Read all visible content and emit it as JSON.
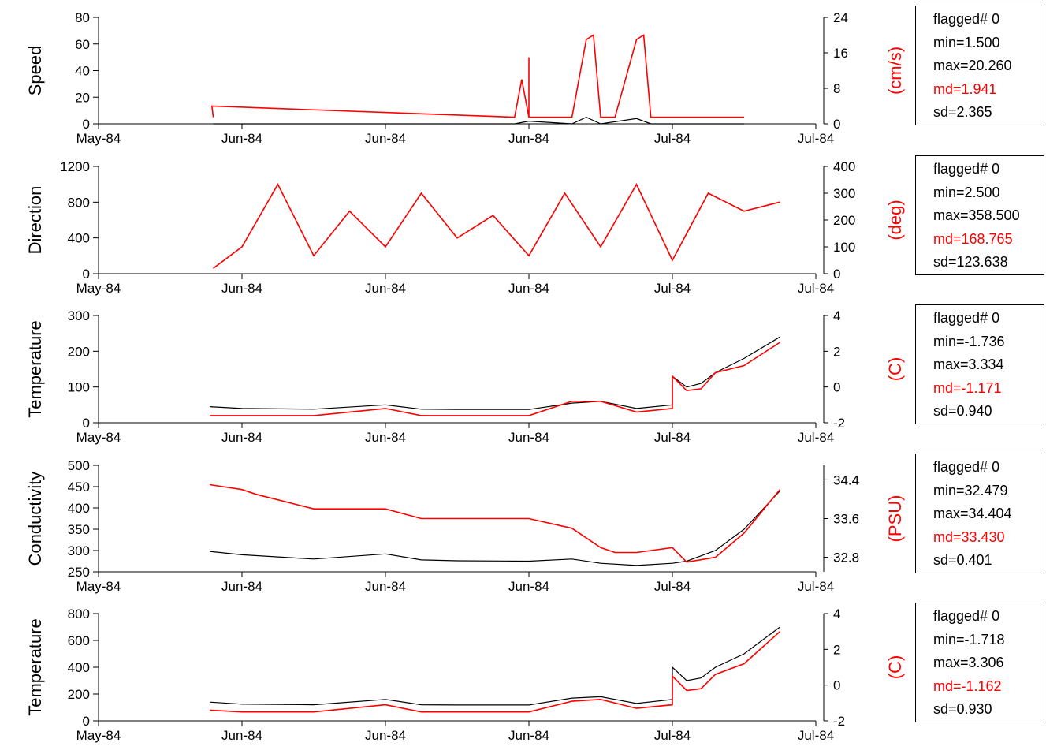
{
  "chart_data": [
    {
      "type": "line",
      "left_axis": {
        "label": "Speed",
        "ylim": [
          0,
          80
        ],
        "ticks": [
          "0",
          "20",
          "40",
          "60",
          "80"
        ]
      },
      "right_axis": {
        "label": "(cm/s)",
        "ylim": [
          0,
          24
        ],
        "ticks": [
          "0",
          "8",
          "16",
          "24"
        ]
      },
      "x_ticks": [
        "May-84",
        "Jun-84",
        "Jun-84",
        "Jun-84",
        "Jul-84",
        "Jul-84"
      ],
      "series": [
        {
          "color": "#ff0000",
          "axis": "right",
          "x": [
            0.16,
            0.158,
            0.58,
            0.59,
            0.6,
            0.6,
            0.6,
            0.66,
            0.68,
            0.69,
            0.7,
            0.72,
            0.75,
            0.76,
            0.77,
            0.8,
            0.9
          ],
          "y": [
            1.5,
            4,
            1.5,
            10,
            1.5,
            15,
            1.5,
            1.5,
            19,
            20,
            1.5,
            1.5,
            19,
            20,
            1.5,
            1.5,
            1.5
          ]
        },
        {
          "color": "#000000",
          "axis": "left",
          "x": [
            0.16,
            0.58,
            0.6,
            0.66,
            0.68,
            0.7,
            0.75,
            0.77,
            0.9
          ],
          "y": [
            0,
            0,
            2,
            0,
            5,
            0,
            4,
            0,
            0
          ]
        }
      ],
      "stats": {
        "flagged": "flagged# 0",
        "min": "min=1.500",
        "max": "max=20.260",
        "md": "md=1.941",
        "sd": "sd=2.365"
      }
    },
    {
      "type": "line",
      "left_axis": {
        "label": "Direction",
        "ylim": [
          0,
          1200
        ],
        "ticks": [
          "0",
          "400",
          "800",
          "1200"
        ]
      },
      "right_axis": {
        "label": "(deg)",
        "ylim": [
          0,
          400
        ],
        "ticks": [
          "0",
          "100",
          "200",
          "300",
          "400"
        ]
      },
      "x_ticks": [
        "May-84",
        "Jun-84",
        "Jun-84",
        "Jun-84",
        "Jul-84",
        "Jul-84"
      ],
      "series": [
        {
          "color": "#000000",
          "axis": "left",
          "x": [
            0.16,
            0.2,
            0.25,
            0.3,
            0.35,
            0.4,
            0.45,
            0.5,
            0.55,
            0.6,
            0.65,
            0.7,
            0.75,
            0.8,
            0.85,
            0.9,
            0.95
          ],
          "y": [
            60,
            300,
            1000,
            200,
            700,
            300,
            900,
            400,
            650,
            200,
            900,
            300,
            1000,
            150,
            900,
            700,
            800
          ]
        },
        {
          "color": "#ff0000",
          "axis": "right",
          "x": [
            0.16,
            0.2,
            0.25,
            0.3,
            0.35,
            0.4,
            0.45,
            0.5,
            0.55,
            0.6,
            0.65,
            0.7,
            0.75,
            0.8,
            0.85,
            0.9,
            0.95
          ],
          "y": [
            20,
            100,
            333,
            67,
            233,
            100,
            300,
            133,
            217,
            67,
            300,
            100,
            333,
            50,
            300,
            233,
            267
          ]
        }
      ],
      "stats": {
        "flagged": "flagged# 0",
        "min": "min=2.500",
        "max": "max=358.500",
        "md": "md=168.765",
        "sd": "sd=123.638"
      }
    },
    {
      "type": "line",
      "left_axis": {
        "label": "Temperature",
        "ylim": [
          0,
          300
        ],
        "ticks": [
          "0",
          "100",
          "200",
          "300"
        ]
      },
      "right_axis": {
        "label": "(C)",
        "ylim": [
          -2,
          4
        ],
        "ticks": [
          "-2",
          "0",
          "2",
          "4"
        ]
      },
      "x_ticks": [
        "May-84",
        "Jun-84",
        "Jun-84",
        "Jun-84",
        "Jul-84",
        "Jul-84"
      ],
      "series": [
        {
          "color": "#000000",
          "axis": "left",
          "x": [
            0.155,
            0.2,
            0.3,
            0.4,
            0.45,
            0.5,
            0.6,
            0.66,
            0.7,
            0.75,
            0.8,
            0.8,
            0.82,
            0.84,
            0.86,
            0.9,
            0.95
          ],
          "y": [
            45,
            40,
            38,
            50,
            38,
            37,
            37,
            55,
            60,
            40,
            50,
            130,
            100,
            110,
            140,
            180,
            240
          ]
        },
        {
          "color": "#ff0000",
          "axis": "right",
          "x": [
            0.155,
            0.2,
            0.3,
            0.4,
            0.45,
            0.5,
            0.6,
            0.66,
            0.7,
            0.75,
            0.8,
            0.8,
            0.82,
            0.84,
            0.86,
            0.9,
            0.95
          ],
          "y": [
            -1.6,
            -1.6,
            -1.6,
            -1.2,
            -1.6,
            -1.6,
            -1.6,
            -0.8,
            -0.8,
            -1.4,
            -1.2,
            0.6,
            -0.2,
            -0.1,
            0.8,
            1.2,
            2.5
          ]
        }
      ],
      "stats": {
        "flagged": "flagged# 0",
        "min": "min=-1.736",
        "max": "max=3.334",
        "md": "md=-1.171",
        "sd": "sd=0.940"
      }
    },
    {
      "type": "line",
      "left_axis": {
        "label": "Conductivity",
        "ylim": [
          250,
          500
        ],
        "ticks": [
          "250",
          "300",
          "350",
          "400",
          "450",
          "500"
        ]
      },
      "right_axis": {
        "label": "(PSU)",
        "ylim": [
          32.5,
          34.7
        ],
        "ticks": [
          "32.8",
          "33.6",
          "34.4"
        ]
      },
      "x_ticks": [
        "May-84",
        "Jun-84",
        "Jun-84",
        "Jun-84",
        "Jul-84",
        "Jul-84"
      ],
      "series": [
        {
          "color": "#000000",
          "axis": "left",
          "x": [
            0.155,
            0.2,
            0.3,
            0.4,
            0.45,
            0.5,
            0.6,
            0.66,
            0.7,
            0.75,
            0.8,
            0.82,
            0.86,
            0.9,
            0.95
          ],
          "y": [
            298,
            290,
            280,
            292,
            278,
            276,
            275,
            280,
            270,
            265,
            270,
            275,
            300,
            350,
            440
          ]
        },
        {
          "color": "#ff0000",
          "axis": "right",
          "x": [
            0.155,
            0.2,
            0.22,
            0.3,
            0.4,
            0.45,
            0.5,
            0.6,
            0.66,
            0.7,
            0.72,
            0.75,
            0.8,
            0.82,
            0.86,
            0.9,
            0.95
          ],
          "y": [
            34.3,
            34.2,
            34.1,
            33.8,
            33.8,
            33.6,
            33.6,
            33.6,
            33.4,
            33.0,
            32.9,
            32.9,
            33.0,
            32.7,
            32.8,
            33.3,
            34.2
          ]
        }
      ],
      "stats": {
        "flagged": "flagged# 0",
        "min": "min=32.479",
        "max": "max=34.404",
        "md": "md=33.430",
        "sd": "sd=0.401"
      }
    },
    {
      "type": "line",
      "left_axis": {
        "label": "Temperature",
        "ylim": [
          0,
          800
        ],
        "ticks": [
          "0",
          "200",
          "400",
          "600",
          "800"
        ]
      },
      "right_axis": {
        "label": "(C)",
        "ylim": [
          -2,
          4
        ],
        "ticks": [
          "-2",
          "0",
          "2",
          "4"
        ]
      },
      "x_ticks": [
        "May-84",
        "Jun-84",
        "Jun-84",
        "Jun-84",
        "Jul-84",
        "Jul-84"
      ],
      "series": [
        {
          "color": "#000000",
          "axis": "left",
          "x": [
            0.155,
            0.2,
            0.3,
            0.4,
            0.45,
            0.5,
            0.6,
            0.66,
            0.7,
            0.75,
            0.8,
            0.8,
            0.82,
            0.84,
            0.86,
            0.9,
            0.95
          ],
          "y": [
            140,
            125,
            120,
            160,
            120,
            118,
            118,
            170,
            180,
            130,
            160,
            400,
            300,
            320,
            400,
            500,
            700
          ]
        },
        {
          "color": "#ff0000",
          "axis": "right",
          "x": [
            0.155,
            0.2,
            0.3,
            0.4,
            0.45,
            0.5,
            0.6,
            0.66,
            0.7,
            0.75,
            0.8,
            0.8,
            0.82,
            0.84,
            0.86,
            0.9,
            0.95
          ],
          "y": [
            -1.4,
            -1.5,
            -1.5,
            -1.1,
            -1.5,
            -1.5,
            -1.5,
            -0.9,
            -0.8,
            -1.3,
            -1.1,
            0.5,
            -0.3,
            -0.2,
            0.6,
            1.2,
            3.0
          ]
        }
      ],
      "stats": {
        "flagged": "flagged# 0",
        "min": "min=-1.718",
        "max": "max=3.306",
        "md": "md=-1.162",
        "sd": "sd=0.930"
      }
    }
  ]
}
